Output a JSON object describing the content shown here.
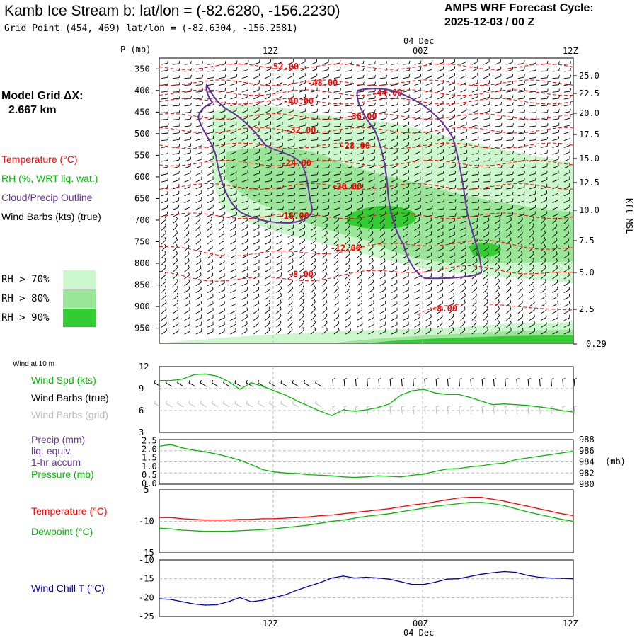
{
  "header": {
    "title": "Kamb Ice Stream b:  lat/lon = (-82.6280, -156.2230)",
    "subtitle": "Grid Point (454, 469) lat/lon = (-82.6304, -156.2581)",
    "cycle_line1": "AMPS WRF Forecast Cycle:",
    "cycle_line2": "2025-12-03 / 00  Z"
  },
  "grid": {
    "label": "Model Grid ΔX:",
    "value": "2.667 km"
  },
  "legend": {
    "temperature": "Temperature (°C)",
    "rh": "RH (%, WRT liq. wat.)",
    "cloud": "Cloud/Precip Outline",
    "wind": "Wind Barbs (kts) (true)",
    "rh70": "RH > 70%",
    "rh80": "RH > 80%",
    "rh90": "RH > 90%"
  },
  "colors": {
    "temperature": "#ff0000",
    "rh": "#00bb00",
    "cloud": "#663399",
    "rh70": "#ccf7cc",
    "rh80": "#99e699",
    "rh90": "#33cc33",
    "windchill": "#0000aa",
    "barb_grid": "#bbbbbb"
  },
  "chart_data": [
    {
      "type": "contour",
      "name": "time-height cross section",
      "p_axis_label": "P (mb)",
      "p_ticks": [
        350,
        400,
        450,
        500,
        550,
        600,
        650,
        700,
        750,
        800,
        850,
        900,
        950
      ],
      "kft_ticks": [
        "25.0",
        "22.5",
        "20.0",
        "17.5",
        "15.0",
        "12.5",
        "10.0",
        "7.5",
        "5.0",
        "2.5",
        "0.29"
      ],
      "kft_label": "Kft MSL",
      "time_ticks": [
        "12Z",
        "00Z",
        "12Z"
      ],
      "date_label": "04 Dec",
      "temperature_contours": [
        {
          "label": "-52.00",
          "p": 345,
          "t": 10.8
        },
        {
          "label": "-48.00",
          "p": 382,
          "t": 14.2
        },
        {
          "label": "-44.00",
          "p": 405,
          "t": 19.8
        },
        {
          "label": "-40.00",
          "p": 425,
          "t": 12.1
        },
        {
          "label": "-36.00",
          "p": 460,
          "t": 17.6
        },
        {
          "label": "-32.00",
          "p": 492,
          "t": 12.3
        },
        {
          "label": "-28.00",
          "p": 528,
          "t": 17.0
        },
        {
          "label": "-24.00",
          "p": 568,
          "t": 11.9
        },
        {
          "label": "-20.00",
          "p": 622,
          "t": 16.3
        },
        {
          "label": "-16.00",
          "p": 690,
          "t": 11.7
        },
        {
          "label": "-12.00",
          "p": 765,
          "t": 16.2
        },
        {
          "label": "-8.00",
          "p": 825,
          "t": 12.3
        },
        {
          "label": "-8.00",
          "p": 905,
          "t": 24.8
        }
      ]
    },
    {
      "type": "line",
      "name": "wind speed",
      "title": "Wind at 10 m",
      "ylim": [
        3,
        12
      ],
      "yticks": [
        3,
        6,
        9,
        12
      ],
      "legend": [
        "Wind Spd (kts)",
        "Wind Barbs (true)",
        "Wind Barbs (grid)"
      ],
      "x": [
        0,
        1,
        2,
        3,
        4,
        5,
        6,
        7,
        8,
        9,
        10,
        11,
        12,
        13,
        14,
        15,
        16,
        17,
        18,
        19,
        20,
        21,
        22,
        23,
        24,
        25,
        26,
        27,
        28,
        29,
        30,
        31,
        32,
        33,
        34,
        35,
        36
      ],
      "series": [
        {
          "name": "Wind Spd (kts)",
          "values": [
            10.1,
            10.1,
            10.3,
            10.9,
            11.0,
            10.7,
            10.0,
            8.9,
            9.8,
            9.3,
            8.7,
            8.1,
            7.3,
            6.6,
            5.9,
            5.3,
            6.1,
            5.9,
            6.1,
            6.4,
            6.9,
            8.1,
            8.7,
            8.9,
            8.4,
            8.2,
            8.2,
            7.8,
            7.3,
            6.8,
            6.9,
            6.8,
            6.7,
            6.5,
            6.3,
            6.0,
            5.8
          ]
        }
      ]
    },
    {
      "type": "line",
      "name": "precip and pressure",
      "legend": [
        "Precip (mm)",
        "liq. equiv.",
        "1-hr accum",
        "Pressure (mb)"
      ],
      "left_yticks": [
        "0.0",
        "0.5",
        "1.0",
        "1.5",
        "2.0",
        "2.5"
      ],
      "right_yticks": [
        "980",
        "982",
        "984",
        "986",
        "988"
      ],
      "right_label": "(mb)",
      "pressure_ylim": [
        980,
        988
      ],
      "x": [
        0,
        1,
        2,
        3,
        4,
        5,
        6,
        7,
        8,
        9,
        10,
        11,
        12,
        13,
        14,
        15,
        16,
        17,
        18,
        19,
        20,
        21,
        22,
        23,
        24,
        25,
        26,
        27,
        28,
        29,
        30,
        31,
        32,
        33,
        34,
        35,
        36
      ],
      "series": [
        {
          "name": "Pressure (mb)",
          "values": [
            986.8,
            987.1,
            986.5,
            986.1,
            985.8,
            985.4,
            984.9,
            984.3,
            983.5,
            982.6,
            982.2,
            982.0,
            981.9,
            981.7,
            981.6,
            981.5,
            981.3,
            981.2,
            981.3,
            981.5,
            981.4,
            981.3,
            981.6,
            981.8,
            982.3,
            982.7,
            982.8,
            983.1,
            983.3,
            983.6,
            983.8,
            984.4,
            984.7,
            985.0,
            985.3,
            985.6,
            985.9
          ]
        }
      ]
    },
    {
      "type": "line",
      "name": "temperature and dewpoint",
      "ylim": [
        -15,
        -5
      ],
      "yticks": [
        -15,
        -10,
        -5
      ],
      "legend": [
        "Temperature (°C)",
        "Dewpoint (°C)"
      ],
      "x": [
        0,
        1,
        2,
        3,
        4,
        5,
        6,
        7,
        8,
        9,
        10,
        11,
        12,
        13,
        14,
        15,
        16,
        17,
        18,
        19,
        20,
        21,
        22,
        23,
        24,
        25,
        26,
        27,
        28,
        29,
        30,
        31,
        32,
        33,
        34,
        35,
        36
      ],
      "series": [
        {
          "name": "Temperature (°C)",
          "values": [
            -9.4,
            -9.4,
            -9.6,
            -9.7,
            -9.8,
            -9.8,
            -9.8,
            -9.7,
            -9.7,
            -9.6,
            -9.6,
            -9.5,
            -9.4,
            -9.3,
            -9.1,
            -9.0,
            -8.8,
            -8.6,
            -8.4,
            -8.2,
            -8.0,
            -7.7,
            -7.4,
            -7.2,
            -6.9,
            -6.6,
            -6.3,
            -6.2,
            -6.2,
            -6.5,
            -6.8,
            -7.2,
            -7.6,
            -8.0,
            -8.4,
            -8.8,
            -9.1
          ]
        },
        {
          "name": "Dewpoint (°C)",
          "values": [
            -11.1,
            -11.2,
            -11.4,
            -11.5,
            -11.6,
            -11.6,
            -11.6,
            -11.5,
            -11.4,
            -11.3,
            -11.2,
            -11.0,
            -10.8,
            -10.6,
            -10.3,
            -10.0,
            -9.8,
            -9.5,
            -9.2,
            -9.0,
            -8.8,
            -8.5,
            -8.2,
            -7.9,
            -7.6,
            -7.4,
            -7.2,
            -7.0,
            -7.0,
            -7.2,
            -7.5,
            -8.0,
            -8.5,
            -8.9,
            -9.3,
            -9.7,
            -10.0
          ]
        }
      ]
    },
    {
      "type": "line",
      "name": "wind chill",
      "ylim": [
        -25,
        -10
      ],
      "yticks": [
        -25,
        -20,
        -15,
        -10
      ],
      "legend": [
        "Wind Chill T (°C)"
      ],
      "x": [
        0,
        1,
        2,
        3,
        4,
        5,
        6,
        7,
        8,
        9,
        10,
        11,
        12,
        13,
        14,
        15,
        16,
        17,
        18,
        19,
        20,
        21,
        22,
        23,
        24,
        25,
        26,
        27,
        28,
        29,
        30,
        31,
        32,
        33,
        34,
        35,
        36
      ],
      "series": [
        {
          "name": "Wind Chill T (°C)",
          "values": [
            -20.3,
            -20.5,
            -21.1,
            -21.7,
            -22.0,
            -21.9,
            -21.1,
            -20.0,
            -21.1,
            -20.7,
            -20.0,
            -19.2,
            -18.0,
            -17.0,
            -16.0,
            -14.8,
            -14.3,
            -14.8,
            -14.6,
            -14.8,
            -15.1,
            -15.8,
            -16.5,
            -16.5,
            -15.9,
            -15.1,
            -15.0,
            -14.4,
            -13.8,
            -13.4,
            -13.1,
            -13.3,
            -14.1,
            -14.6,
            -14.8,
            -14.9,
            -15.0
          ]
        }
      ]
    }
  ]
}
